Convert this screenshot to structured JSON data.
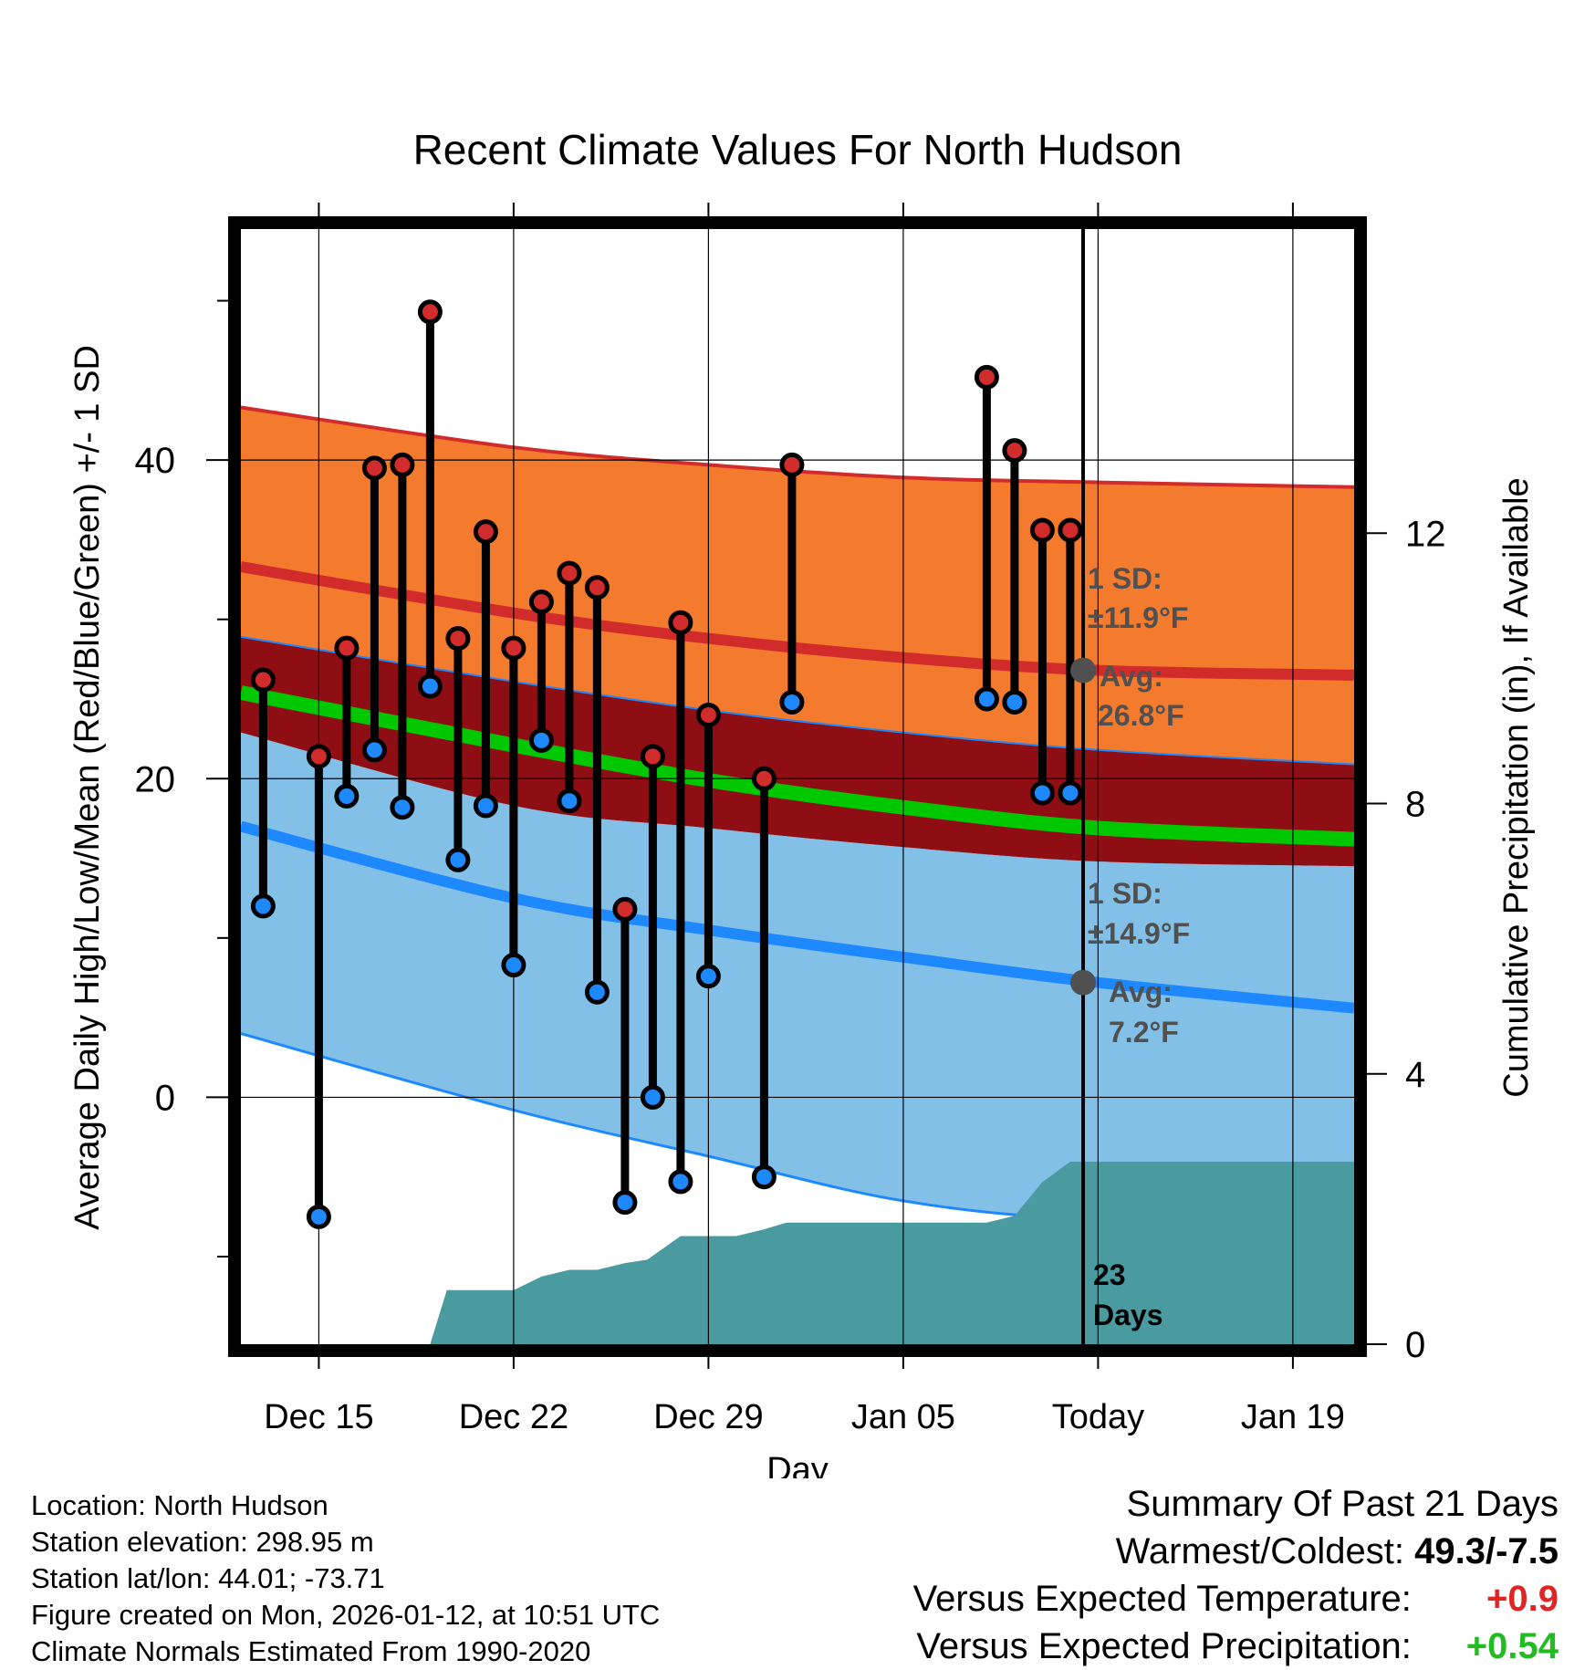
{
  "chart_data": {
    "type": "line",
    "title": "Recent Climate Values For North Hudson",
    "xlabel": "Day",
    "ylabel": "Average Daily High/Low/Mean (Red/Blue/Green) +/- 1 SD",
    "y2label": "Cumulative Precipitation (in), If Available",
    "ylim": [
      -15.5,
      54.5
    ],
    "y_ticks": [
      0,
      20,
      40
    ],
    "y2lim": [
      0,
      16.5
    ],
    "y2_ticks": [
      0,
      4,
      8,
      12
    ],
    "xlim": [
      -2.8,
      37.2
    ],
    "x_ticks": [
      {
        "day": 0,
        "label": "Dec 15"
      },
      {
        "day": 7,
        "label": "Dec 22"
      },
      {
        "day": 14,
        "label": "Dec 29"
      },
      {
        "day": 21,
        "label": "Jan 05"
      },
      {
        "day": 28,
        "label": "Today"
      },
      {
        "day": 35,
        "label": "Jan 19"
      }
    ],
    "today_day": 28,
    "normals": {
      "days": [
        -2.8,
        7,
        14,
        21,
        28,
        37.2
      ],
      "high_mean": [
        33.3,
        30.4,
        28.8,
        27.6,
        26.8,
        26.5
      ],
      "high_plus_sd": [
        43.3,
        40.8,
        39.7,
        38.9,
        38.6,
        38.3
      ],
      "mean": [
        25.4,
        22.1,
        19.9,
        18.2,
        16.9,
        16.2
      ],
      "mean_plus_sd": [
        28.9,
        26.1,
        24.3,
        22.9,
        21.8,
        20.9
      ],
      "mean_minus_sd": [
        22.9,
        18.3,
        16.9,
        15.7,
        14.8,
        14.5
      ],
      "low_mean": [
        17.0,
        12.5,
        10.5,
        8.8,
        7.2,
        5.6
      ],
      "low_minus_sd": [
        4.0,
        -0.8,
        -3.7,
        -6.5,
        -7.7,
        -7.7
      ]
    },
    "series": [
      {
        "name": "High",
        "color": "#cc2222",
        "days": [
          -2,
          0,
          1,
          2,
          3,
          4,
          5,
          6,
          7,
          8,
          9,
          10,
          11,
          12,
          13,
          14,
          16,
          17,
          24,
          25,
          26,
          27
        ],
        "values": [
          26.2,
          21.4,
          28.2,
          39.5,
          39.7,
          49.3,
          28.8,
          35.5,
          28.2,
          31.1,
          32.9,
          32.0,
          11.8,
          21.4,
          29.8,
          24.0,
          20.0,
          39.7,
          45.2,
          40.6,
          35.6,
          35.6
        ]
      },
      {
        "name": "Low",
        "color": "#1e88ff",
        "days": [
          -2,
          0,
          1,
          2,
          3,
          4,
          5,
          6,
          7,
          8,
          9,
          10,
          11,
          12,
          13,
          14,
          16,
          17,
          24,
          25,
          26,
          27
        ],
        "values": [
          12.0,
          -7.5,
          18.9,
          21.8,
          18.2,
          25.8,
          14.9,
          18.3,
          8.3,
          22.4,
          18.6,
          6.6,
          -6.6,
          0.0,
          -5.3,
          7.6,
          -5.0,
          24.8,
          25.0,
          24.8,
          19.1,
          19.1
        ]
      }
    ],
    "precipitation": {
      "days": [
        3.2,
        4.0,
        4.6,
        5.6,
        6.8,
        7.0,
        8.0,
        9.0,
        10.0,
        11.0,
        11.8,
        13.0,
        14.0,
        15.0,
        16.0,
        16.8,
        17.8,
        19.0,
        20.0,
        21.0,
        22.0,
        23.0,
        24.0,
        25.0,
        26.0,
        27.0,
        28.0,
        37.2
      ],
      "values": [
        0.0,
        0.0,
        0.8,
        0.8,
        0.8,
        0.8,
        1.0,
        1.1,
        1.1,
        1.2,
        1.25,
        1.6,
        1.6,
        1.6,
        1.7,
        1.8,
        1.8,
        1.8,
        1.8,
        1.8,
        1.8,
        1.8,
        1.8,
        1.9,
        2.4,
        2.7,
        2.7,
        2.7
      ]
    },
    "annotations": {
      "high_sd_label": "1 SD:",
      "high_sd_value": "±11.9°F",
      "high_avg_label": "Avg:",
      "high_avg_value": "26.8°F",
      "high_avg": 26.8,
      "low_sd_label": "1 SD:",
      "low_sd_value": "±14.9°F",
      "low_avg_label": "Avg:",
      "low_avg_value": "7.2°F",
      "low_avg": 7.2,
      "days_count": "23",
      "days_word": "Days"
    },
    "colors": {
      "high_band": "#f47a2d",
      "high_line": "#d22b2b",
      "mean_band": "#8e0e13",
      "mean_line": "#00c800",
      "low_band": "#82c0e8",
      "low_line": "#1e88ff",
      "precip": "#499ba0",
      "annotation": "#505050"
    }
  },
  "footer": {
    "location": "Location: North Hudson",
    "elevation": "Station elevation: 298.95 m",
    "latlon": "Station lat/lon: 44.01; -73.71",
    "created": "Figure created on Mon, 2026-01-12, at 10:51 UTC",
    "normals": "Climate Normals Estimated From 1990-2020"
  },
  "summary": {
    "title": "Summary Of Past 21 Days",
    "warmest_coldest_label": "Warmest/Coldest:",
    "warmest_coldest_value": "49.3/-7.5",
    "temp_label": "Versus Expected Temperature:",
    "temp_value": "+0.9",
    "temp_color": "#e02525",
    "precip_label": "Versus Expected Precipitation:",
    "precip_value": "+0.54",
    "precip_color": "#22bb22"
  }
}
